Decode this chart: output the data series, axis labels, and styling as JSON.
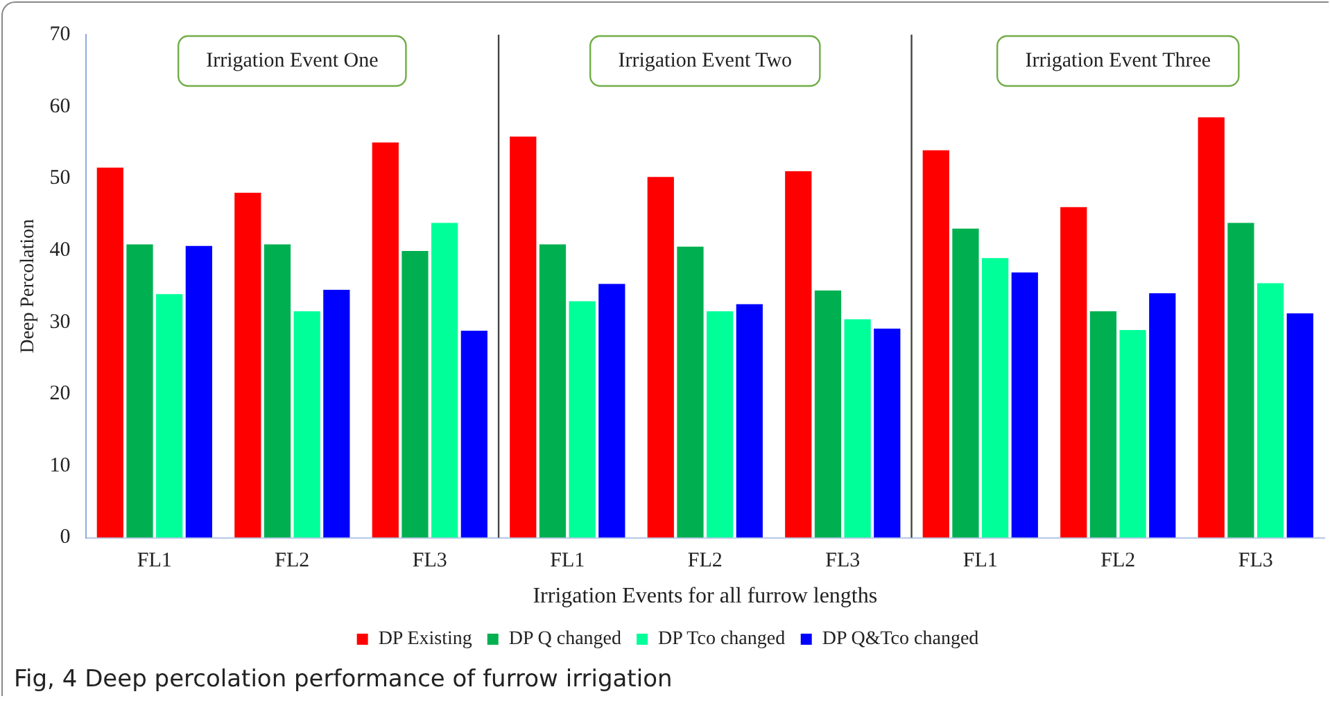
{
  "chart_data": {
    "type": "bar",
    "xlabel": "Irrigation Events for all furrow lengths",
    "ylabel": "Deep Percolation",
    "categories": [
      "FL1",
      "FL2",
      "FL3",
      "FL1",
      "FL2",
      "FL3",
      "FL1",
      "FL2",
      "FL3"
    ],
    "series": [
      {
        "name": "DP Existing",
        "color": "#ff0000",
        "values": [
          51.7,
          48.2,
          55.2,
          56.0,
          50.4,
          51.2,
          54.1,
          46.2,
          58.7
        ]
      },
      {
        "name": "DP Q changed",
        "color": "#00b050",
        "values": [
          41.0,
          41.0,
          40.1,
          41.0,
          40.7,
          34.6,
          43.2,
          31.7,
          44.0
        ]
      },
      {
        "name": "DP Tco changed",
        "color": "#00ff99",
        "values": [
          34.1,
          31.7,
          44.0,
          33.1,
          31.7,
          30.6,
          39.1,
          29.1,
          35.6
        ]
      },
      {
        "name": "DP Q&Tco changed",
        "color": "#0000ff",
        "values": [
          40.8,
          34.7,
          29.0,
          35.5,
          32.7,
          29.3,
          37.1,
          34.2,
          31.4
        ]
      }
    ],
    "ylim": [
      0,
      70
    ],
    "yticks": [
      0,
      10,
      20,
      30,
      40,
      50,
      60,
      70
    ],
    "grid": false,
    "legend": "bottom",
    "annotations": [
      "Irrigation Event One",
      "Irrigation Event Two",
      "Irrigation Event Three",
      "Fig, 4  Deep percolation performance of furrow irrigation"
    ]
  }
}
